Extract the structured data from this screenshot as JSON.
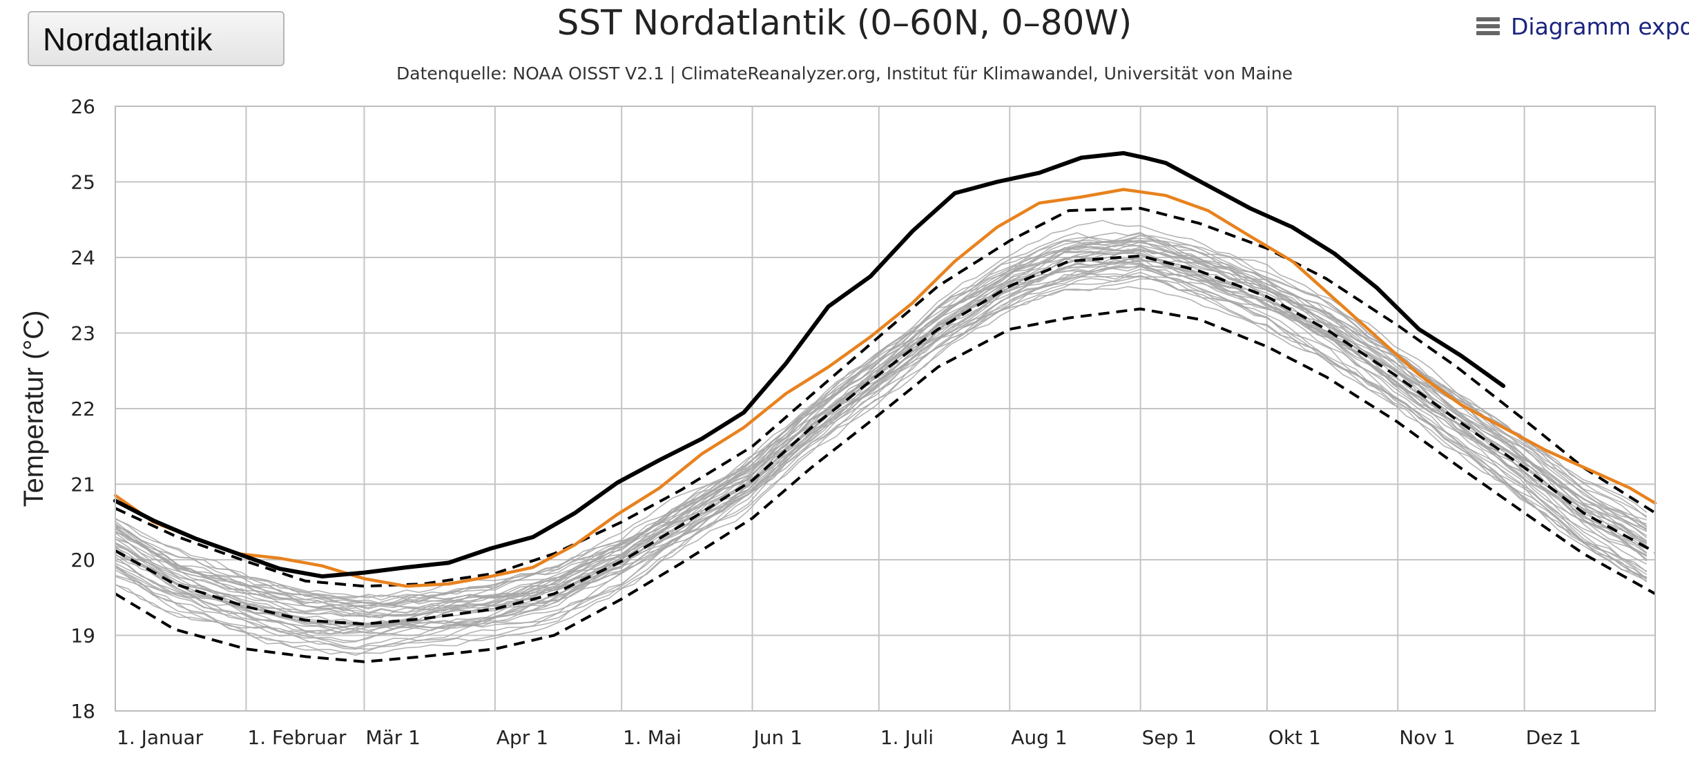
{
  "region_select": {
    "selected": "Nordatlantik"
  },
  "export_menu": {
    "label": "Diagramm exportieren"
  },
  "chart_data": {
    "type": "line",
    "title": "SST Nordatlantik (0–60N, 0–80W)",
    "subtitle": "Datenquelle: NOAA OISST V2.1 | ClimateReanalyzer.org, Institut für Klimawandel, Universität von Maine",
    "ylabel": "Temperatur (°C)",
    "xlabel": "",
    "ylim": [
      18,
      26
    ],
    "xlim": [
      1,
      366
    ],
    "yticks": [
      18,
      19,
      20,
      21,
      22,
      23,
      24,
      25,
      26
    ],
    "xticks": [
      {
        "day": 1,
        "label": "1. Januar"
      },
      {
        "day": 32,
        "label": "1. Februar"
      },
      {
        "day": 60,
        "label": "Mär 1"
      },
      {
        "day": 91,
        "label": "Apr 1"
      },
      {
        "day": 121,
        "label": "1. Mai"
      },
      {
        "day": 152,
        "label": "Jun 1"
      },
      {
        "day": 182,
        "label": "1. Juli"
      },
      {
        "day": 213,
        "label": "Aug 1"
      },
      {
        "day": 244,
        "label": "Sep 1"
      },
      {
        "day": 274,
        "label": "Okt 1"
      },
      {
        "day": 305,
        "label": "Nov 1"
      },
      {
        "day": 335,
        "label": "Dez 1"
      }
    ],
    "grid": true,
    "legend": "none",
    "series": [
      {
        "role": "current",
        "color": "#000000",
        "style": "solid-thick",
        "x": [
          1,
          10,
          20,
          30,
          40,
          50,
          60,
          70,
          80,
          90,
          100,
          110,
          120,
          130,
          140,
          150,
          160,
          170,
          180,
          190,
          200,
          210,
          220,
          230,
          240,
          245,
          250,
          260,
          270,
          280,
          290,
          300,
          310,
          320,
          330
        ],
        "y": [
          20.78,
          20.52,
          20.28,
          20.08,
          19.88,
          19.78,
          19.83,
          19.9,
          19.96,
          20.15,
          20.3,
          20.62,
          21.02,
          21.32,
          21.6,
          21.95,
          22.6,
          23.35,
          23.75,
          24.35,
          24.85,
          25.0,
          25.12,
          25.32,
          25.38,
          25.32,
          25.25,
          24.95,
          24.65,
          24.4,
          24.05,
          23.6,
          23.05,
          22.7,
          22.3
        ]
      },
      {
        "role": "previous-year",
        "color": "#e8821e",
        "style": "solid",
        "x": [
          1,
          10,
          20,
          30,
          40,
          50,
          60,
          70,
          80,
          90,
          100,
          110,
          120,
          130,
          140,
          150,
          160,
          170,
          180,
          190,
          200,
          210,
          220,
          230,
          240,
          250,
          260,
          270,
          280,
          290,
          300,
          310,
          320,
          330,
          340,
          350,
          360,
          366
        ],
        "y": [
          20.85,
          20.5,
          20.28,
          20.08,
          20.02,
          19.92,
          19.75,
          19.65,
          19.68,
          19.78,
          19.9,
          20.2,
          20.6,
          20.95,
          21.4,
          21.75,
          22.2,
          22.55,
          22.95,
          23.4,
          23.95,
          24.4,
          24.72,
          24.8,
          24.9,
          24.82,
          24.62,
          24.28,
          23.95,
          23.45,
          22.95,
          22.45,
          22.05,
          21.75,
          21.45,
          21.2,
          20.95,
          20.75
        ]
      },
      {
        "role": "upper-2sigma",
        "color": "#000000",
        "style": "dashed",
        "x": [
          1,
          15,
          32,
          46,
          60,
          74,
          91,
          105,
          121,
          135,
          152,
          166,
          182,
          196,
          213,
          227,
          244,
          258,
          274,
          288,
          305,
          319,
          335,
          349,
          366
        ],
        "y": [
          20.68,
          20.32,
          19.98,
          19.72,
          19.65,
          19.68,
          19.82,
          20.08,
          20.5,
          20.92,
          21.5,
          22.18,
          22.95,
          23.62,
          24.22,
          24.62,
          24.65,
          24.45,
          24.12,
          23.72,
          23.1,
          22.55,
          21.85,
          21.22,
          20.62
        ]
      },
      {
        "role": "mean",
        "color": "#000000",
        "style": "dashed",
        "x": [
          1,
          15,
          32,
          46,
          60,
          74,
          91,
          105,
          121,
          135,
          152,
          166,
          182,
          196,
          213,
          227,
          244,
          258,
          274,
          288,
          305,
          319,
          335,
          349,
          366
        ],
        "y": [
          20.12,
          19.68,
          19.38,
          19.2,
          19.15,
          19.22,
          19.35,
          19.55,
          19.98,
          20.45,
          21.05,
          21.75,
          22.45,
          23.05,
          23.62,
          23.95,
          24.02,
          23.82,
          23.48,
          23.05,
          22.42,
          21.85,
          21.22,
          20.62,
          20.1
        ]
      },
      {
        "role": "lower-2sigma",
        "color": "#000000",
        "style": "dashed",
        "x": [
          1,
          15,
          32,
          46,
          60,
          74,
          91,
          105,
          121,
          135,
          152,
          166,
          182,
          196,
          213,
          227,
          244,
          258,
          274,
          288,
          305,
          319,
          335,
          349,
          366
        ],
        "y": [
          19.55,
          19.08,
          18.82,
          18.72,
          18.65,
          18.72,
          18.82,
          19.0,
          19.48,
          19.95,
          20.55,
          21.22,
          21.92,
          22.55,
          23.05,
          23.2,
          23.32,
          23.18,
          22.82,
          22.42,
          21.82,
          21.25,
          20.62,
          20.08,
          19.55
        ]
      }
    ],
    "background_years": {
      "color": "#a6a6a6",
      "count": 40,
      "spread_celsius": 0.45
    }
  }
}
